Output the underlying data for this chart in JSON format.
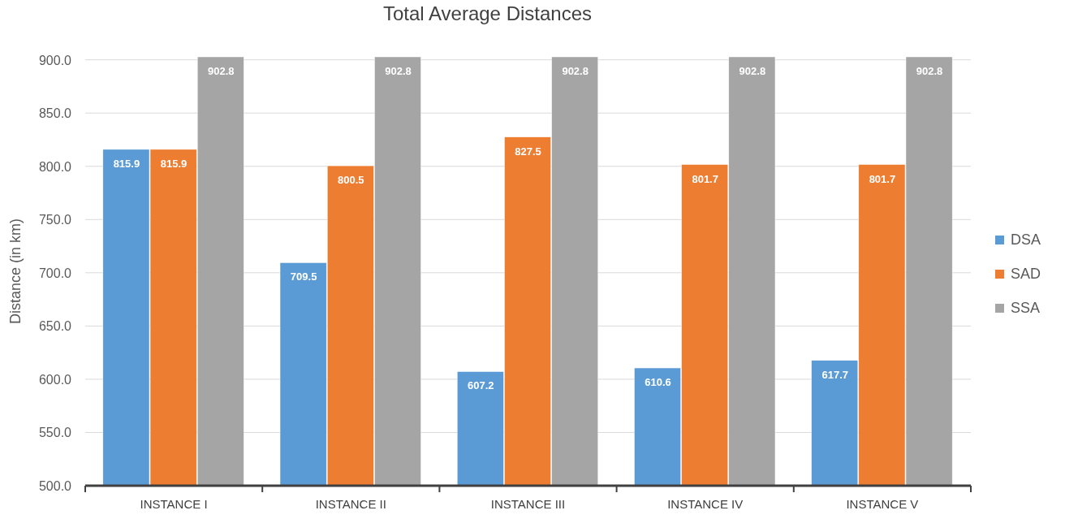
{
  "chart_data": {
    "type": "bar",
    "title": "Total Average Distances",
    "ylabel": "Distance (in km)",
    "categories": [
      "INSTANCE I",
      "INSTANCE II",
      "INSTANCE III",
      "INSTANCE IV",
      "INSTANCE V"
    ],
    "series": [
      {
        "name": "DSA",
        "color": "#5b9bd5",
        "values": [
          815.9,
          709.5,
          607.2,
          610.6,
          617.7
        ]
      },
      {
        "name": "SAD",
        "color": "#ed7d31",
        "values": [
          815.9,
          800.5,
          827.5,
          801.7,
          801.7
        ]
      },
      {
        "name": "SSA",
        "color": "#a5a5a5",
        "values": [
          902.8,
          902.8,
          902.8,
          902.8,
          902.8
        ]
      }
    ],
    "ylim": [
      500,
      902.8
    ],
    "yticks": [
      {
        "value": 500,
        "label": "500.0"
      },
      {
        "value": 550,
        "label": "550.0"
      },
      {
        "value": 600,
        "label": "600.0"
      },
      {
        "value": 650,
        "label": "650.0"
      },
      {
        "value": 700,
        "label": "700.0"
      },
      {
        "value": 750,
        "label": "750.0"
      },
      {
        "value": 800,
        "label": "800.0"
      },
      {
        "value": 850,
        "label": "850.0"
      },
      {
        "value": 900,
        "label": "900.0"
      }
    ],
    "grid": "y",
    "legend": "right",
    "data_labels": true
  }
}
